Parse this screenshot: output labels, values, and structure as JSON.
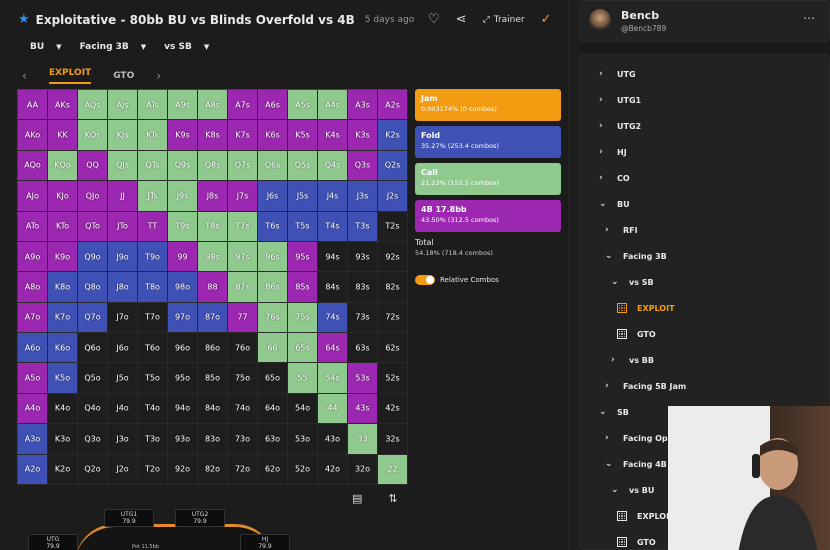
{
  "header": {
    "title": "Exploitative - 80bb BU vs Blinds Overfold vs 4B",
    "ago": "5 days ago",
    "trainer_label": "Trainer"
  },
  "filters": [
    "BU",
    "Facing 3B",
    "vs SB"
  ],
  "tabs": [
    "EXPLOIT",
    "GTO"
  ],
  "colors": {
    "jam": "#f39c12",
    "fold": "#3f51b5",
    "call": "#8fc98e",
    "fourb": "#9c27b0",
    "empty": "#1e1e1e"
  },
  "legend": {
    "jam": {
      "label": "Jam",
      "detail": "0.003174% (0 combos)"
    },
    "fold": {
      "label": "Fold",
      "detail": "35.27% (253.4 combos)"
    },
    "call": {
      "label": "Call",
      "detail": "21.23% (152.5 combos)"
    },
    "fourb": {
      "label": "4B 17.8bb",
      "detail": "43.50% (312.5 combos)"
    }
  },
  "total": {
    "label": "Total",
    "detail": "54.18% (718.4 combos)"
  },
  "toggle_label": "Relative Combos",
  "table": {
    "seats": [
      {
        "pos": "UTG1",
        "stack": "79.9"
      },
      {
        "pos": "UTG2",
        "stack": "79.9"
      },
      {
        "pos": "UTG",
        "stack": "79.9"
      },
      {
        "pos": "HJ",
        "stack": "79.9"
      }
    ],
    "pot": "Pot 11.5bb"
  },
  "profile": {
    "name": "Bencb",
    "handle": "@Bencb789"
  },
  "tree": [
    {
      "label": "UTG",
      "depth": 0,
      "chev": "›"
    },
    {
      "label": "UTG1",
      "depth": 0,
      "chev": "›"
    },
    {
      "label": "UTG2",
      "depth": 0,
      "chev": "›"
    },
    {
      "label": "HJ",
      "depth": 0,
      "chev": "›"
    },
    {
      "label": "CO",
      "depth": 0,
      "chev": "›"
    },
    {
      "label": "BU",
      "depth": 0,
      "chev": "⌄"
    },
    {
      "label": "RFI",
      "depth": 1,
      "chev": "›"
    },
    {
      "label": "Facing 3B",
      "depth": 1,
      "chev": "⌄"
    },
    {
      "label": "vs SB",
      "depth": 2,
      "chev": "⌄"
    },
    {
      "label": "EXPLOIT",
      "depth": 3,
      "icon": true,
      "selected": true
    },
    {
      "label": "GTO",
      "depth": 3,
      "icon": true
    },
    {
      "label": "vs BB",
      "depth": 2,
      "chev": "›"
    },
    {
      "label": "Facing 5B Jam",
      "depth": 1,
      "chev": "›"
    },
    {
      "label": "SB",
      "depth": 0,
      "chev": "⌄"
    },
    {
      "label": "Facing Open",
      "depth": 1,
      "chev": "›"
    },
    {
      "label": "Facing 4B",
      "depth": 1,
      "chev": "⌄"
    },
    {
      "label": "vs BU",
      "depth": 2,
      "chev": "⌄"
    },
    {
      "label": "EXPLOIT",
      "depth": 3,
      "icon": true
    },
    {
      "label": "GTO",
      "depth": 3,
      "icon": true
    }
  ],
  "grid": {
    "rows": [
      [
        [
          "AA",
          "f"
        ],
        [
          "AKs",
          "f"
        ],
        [
          "AQs",
          "c"
        ],
        [
          "AJs",
          "c"
        ],
        [
          "ATs",
          "c"
        ],
        [
          "A9s",
          "c"
        ],
        [
          "A8s",
          "c"
        ],
        [
          "A7s",
          "f"
        ],
        [
          "A6s",
          "f"
        ],
        [
          "A5s",
          "c"
        ],
        [
          "A4s",
          "c"
        ],
        [
          "A3s",
          "f"
        ],
        [
          "A2s",
          "f"
        ]
      ],
      [
        [
          "AKo",
          "f"
        ],
        [
          "KK",
          "f"
        ],
        [
          "KQs",
          "c"
        ],
        [
          "KJs",
          "c"
        ],
        [
          "KTs",
          "c"
        ],
        [
          "K9s",
          "f"
        ],
        [
          "K8s",
          "f"
        ],
        [
          "K7s",
          "f"
        ],
        [
          "K6s",
          "f"
        ],
        [
          "K5s",
          "f"
        ],
        [
          "K4s",
          "f"
        ],
        [
          "K3s",
          "f"
        ],
        [
          "K2s",
          "b"
        ]
      ],
      [
        [
          "AQo",
          "f"
        ],
        [
          "KQo",
          "c"
        ],
        [
          "QQ",
          "f"
        ],
        [
          "QJs",
          "c"
        ],
        [
          "QTs",
          "c"
        ],
        [
          "Q9s",
          "c"
        ],
        [
          "Q8s",
          "c"
        ],
        [
          "Q7s",
          "c"
        ],
        [
          "Q6s",
          "c"
        ],
        [
          "Q5s",
          "c"
        ],
        [
          "Q4s",
          "c"
        ],
        [
          "Q3s",
          "f"
        ],
        [
          "Q2s",
          "b"
        ]
      ],
      [
        [
          "AJo",
          "f"
        ],
        [
          "KJo",
          "f"
        ],
        [
          "QJo",
          "f"
        ],
        [
          "JJ",
          "f"
        ],
        [
          "JTs",
          "c"
        ],
        [
          "J9s",
          "c"
        ],
        [
          "J8s",
          "f"
        ],
        [
          "J7s",
          "f"
        ],
        [
          "J6s",
          "b"
        ],
        [
          "J5s",
          "b"
        ],
        [
          "J4s",
          "b"
        ],
        [
          "J3s",
          "b"
        ],
        [
          "J2s",
          "b"
        ]
      ],
      [
        [
          "ATo",
          "f"
        ],
        [
          "KTo",
          "f"
        ],
        [
          "QTo",
          "f"
        ],
        [
          "JTo",
          "f"
        ],
        [
          "TT",
          "f"
        ],
        [
          "T9s",
          "c"
        ],
        [
          "T8s",
          "c"
        ],
        [
          "T7s",
          "c"
        ],
        [
          "T6s",
          "b"
        ],
        [
          "T5s",
          "b"
        ],
        [
          "T4s",
          "b"
        ],
        [
          "T3s",
          "b"
        ],
        [
          "T2s",
          "e"
        ]
      ],
      [
        [
          "A9o",
          "f"
        ],
        [
          "K9o",
          "f"
        ],
        [
          "Q9o",
          "b"
        ],
        [
          "J9o",
          "b"
        ],
        [
          "T9o",
          "b"
        ],
        [
          "99",
          "f"
        ],
        [
          "98s",
          "c"
        ],
        [
          "97s",
          "c"
        ],
        [
          "96s",
          "c"
        ],
        [
          "95s",
          "f"
        ],
        [
          "94s",
          "e"
        ],
        [
          "93s",
          "e"
        ],
        [
          "92s",
          "e"
        ]
      ],
      [
        [
          "A8o",
          "f"
        ],
        [
          "K8o",
          "b"
        ],
        [
          "Q8o",
          "b"
        ],
        [
          "J8o",
          "b"
        ],
        [
          "T8o",
          "b"
        ],
        [
          "98o",
          "b"
        ],
        [
          "88",
          "f"
        ],
        [
          "87s",
          "c"
        ],
        [
          "86s",
          "c"
        ],
        [
          "85s",
          "f"
        ],
        [
          "84s",
          "e"
        ],
        [
          "83s",
          "e"
        ],
        [
          "82s",
          "e"
        ]
      ],
      [
        [
          "A7o",
          "f"
        ],
        [
          "K7o",
          "b"
        ],
        [
          "Q7o",
          "b"
        ],
        [
          "J7o",
          "e"
        ],
        [
          "T7o",
          "e"
        ],
        [
          "97o",
          "b"
        ],
        [
          "87o",
          "b"
        ],
        [
          "77",
          "f"
        ],
        [
          "76s",
          "c"
        ],
        [
          "75s",
          "c"
        ],
        [
          "74s",
          "b"
        ],
        [
          "73s",
          "e"
        ],
        [
          "72s",
          "e"
        ]
      ],
      [
        [
          "A6o",
          "b"
        ],
        [
          "K6o",
          "b"
        ],
        [
          "Q6o",
          "e"
        ],
        [
          "J6o",
          "e"
        ],
        [
          "T6o",
          "e"
        ],
        [
          "96o",
          "e"
        ],
        [
          "86o",
          "e"
        ],
        [
          "76o",
          "e"
        ],
        [
          "66",
          "c"
        ],
        [
          "65s",
          "c"
        ],
        [
          "64s",
          "f"
        ],
        [
          "63s",
          "e"
        ],
        [
          "62s",
          "e"
        ]
      ],
      [
        [
          "A5o",
          "f"
        ],
        [
          "K5o",
          "b"
        ],
        [
          "Q5o",
          "e"
        ],
        [
          "J5o",
          "e"
        ],
        [
          "T5o",
          "e"
        ],
        [
          "95o",
          "e"
        ],
        [
          "85o",
          "e"
        ],
        [
          "75o",
          "e"
        ],
        [
          "65o",
          "e"
        ],
        [
          "55",
          "c"
        ],
        [
          "54s",
          "c"
        ],
        [
          "53s",
          "f"
        ],
        [
          "52s",
          "e"
        ]
      ],
      [
        [
          "A4o",
          "f"
        ],
        [
          "K4o",
          "e"
        ],
        [
          "Q4o",
          "e"
        ],
        [
          "J4o",
          "e"
        ],
        [
          "T4o",
          "e"
        ],
        [
          "94o",
          "e"
        ],
        [
          "84o",
          "e"
        ],
        [
          "74o",
          "e"
        ],
        [
          "64o",
          "e"
        ],
        [
          "54o",
          "e"
        ],
        [
          "44",
          "c"
        ],
        [
          "43s",
          "f"
        ],
        [
          "42s",
          "e"
        ]
      ],
      [
        [
          "A3o",
          "b"
        ],
        [
          "K3o",
          "e"
        ],
        [
          "Q3o",
          "e"
        ],
        [
          "J3o",
          "e"
        ],
        [
          "T3o",
          "e"
        ],
        [
          "93o",
          "e"
        ],
        [
          "83o",
          "e"
        ],
        [
          "73o",
          "e"
        ],
        [
          "63o",
          "e"
        ],
        [
          "53o",
          "e"
        ],
        [
          "43o",
          "e"
        ],
        [
          "33",
          "c"
        ],
        [
          "32s",
          "e"
        ]
      ],
      [
        [
          "A2o",
          "b"
        ],
        [
          "K2o",
          "e"
        ],
        [
          "Q2o",
          "e"
        ],
        [
          "J2o",
          "e"
        ],
        [
          "T2o",
          "e"
        ],
        [
          "92o",
          "e"
        ],
        [
          "82o",
          "e"
        ],
        [
          "72o",
          "e"
        ],
        [
          "62o",
          "e"
        ],
        [
          "52o",
          "e"
        ],
        [
          "42o",
          "e"
        ],
        [
          "32o",
          "e"
        ],
        [
          "22",
          "c"
        ]
      ]
    ]
  }
}
